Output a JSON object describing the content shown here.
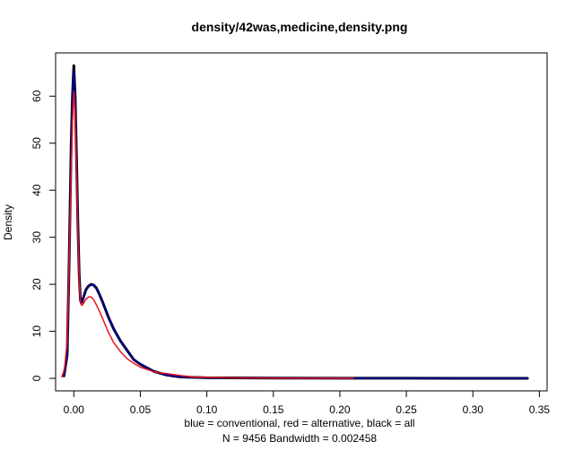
{
  "chart_data": {
    "type": "line",
    "title": "density/42was,medicine,density.png",
    "xlabel": "blue = conventional, red = alternative, black = all",
    "sublabel": "N = 9456   Bandwidth = 0.002458",
    "ylabel": "Density",
    "xlim": [
      -0.0137,
      0.3558
    ],
    "ylim": [
      -2.66,
      69.2
    ],
    "x_ticks": [
      0.0,
      0.05,
      0.1,
      0.15,
      0.2,
      0.25,
      0.3,
      0.35
    ],
    "x_tick_labels": [
      "0.00",
      "0.05",
      "0.10",
      "0.15",
      "0.20",
      "0.25",
      "0.30",
      "0.35"
    ],
    "y_ticks": [
      0,
      10,
      20,
      30,
      40,
      50,
      60
    ],
    "y_tick_labels": [
      "0",
      "10",
      "20",
      "30",
      "40",
      "50",
      "60"
    ],
    "grid": false,
    "series": [
      {
        "name": "all",
        "color": "#000000",
        "line_width": 3,
        "x": [
          -0.0074,
          -0.005,
          -0.0035,
          -0.002,
          -0.001,
          0.0,
          0.001,
          0.002,
          0.003,
          0.004,
          0.005,
          0.006,
          0.007,
          0.009,
          0.011,
          0.013,
          0.015,
          0.017,
          0.019,
          0.022,
          0.026,
          0.03,
          0.035,
          0.04,
          0.045,
          0.05,
          0.06,
          0.07,
          0.08,
          0.1,
          0.15,
          0.2,
          0.25,
          0.3,
          0.341
        ],
        "y": [
          0.5,
          5,
          25,
          50,
          60,
          66.5,
          60,
          47,
          33,
          22,
          16.5,
          16.2,
          17,
          18.8,
          19.6,
          20,
          19.8,
          19.2,
          18,
          16,
          13,
          10.5,
          8,
          6,
          4,
          3,
          1.5,
          0.7,
          0.3,
          0.12,
          0.05,
          0.03,
          0.02,
          0.01,
          0.0
        ]
      },
      {
        "name": "conventional",
        "color": "#00008b",
        "line_width": 2,
        "x": [
          -0.0074,
          -0.005,
          -0.0035,
          -0.002,
          -0.001,
          0.0,
          0.001,
          0.002,
          0.003,
          0.004,
          0.005,
          0.006,
          0.007,
          0.009,
          0.011,
          0.013,
          0.015,
          0.017,
          0.019,
          0.022,
          0.026,
          0.03,
          0.035,
          0.04,
          0.045,
          0.05,
          0.06,
          0.07,
          0.08,
          0.1,
          0.15,
          0.2,
          0.25,
          0.3,
          0.341
        ],
        "y": [
          0.5,
          5,
          25,
          49,
          59,
          65.5,
          59,
          46,
          32,
          21.5,
          16.5,
          16.2,
          17,
          18.8,
          19.6,
          20,
          19.8,
          19.2,
          18,
          16,
          13,
          10.5,
          8,
          6,
          4,
          3,
          1.5,
          0.7,
          0.3,
          0.12,
          0.05,
          0.03,
          0.02,
          0.01,
          0.0
        ]
      },
      {
        "name": "alternative",
        "color": "#e8141e",
        "line_width": 1.5,
        "x": [
          -0.009,
          -0.007,
          -0.005,
          -0.0035,
          -0.002,
          -0.001,
          0.0,
          0.001,
          0.002,
          0.003,
          0.004,
          0.005,
          0.006,
          0.007,
          0.009,
          0.011,
          0.013,
          0.015,
          0.017,
          0.02,
          0.023,
          0.026,
          0.03,
          0.035,
          0.04,
          0.045,
          0.05,
          0.06,
          0.07,
          0.08,
          0.09,
          0.1,
          0.12,
          0.15,
          0.18,
          0.21
        ],
        "y": [
          0.3,
          2,
          8,
          25,
          44,
          55,
          61,
          56,
          44,
          31,
          21,
          16,
          15.5,
          15.8,
          16.8,
          17.3,
          17.3,
          16.7,
          15.6,
          13.8,
          11.8,
          9.8,
          7.6,
          5.7,
          4.2,
          3.2,
          2.4,
          1.4,
          1.0,
          0.6,
          0.3,
          0.2,
          0.1,
          0.05,
          0.03,
          0.02
        ]
      }
    ]
  }
}
